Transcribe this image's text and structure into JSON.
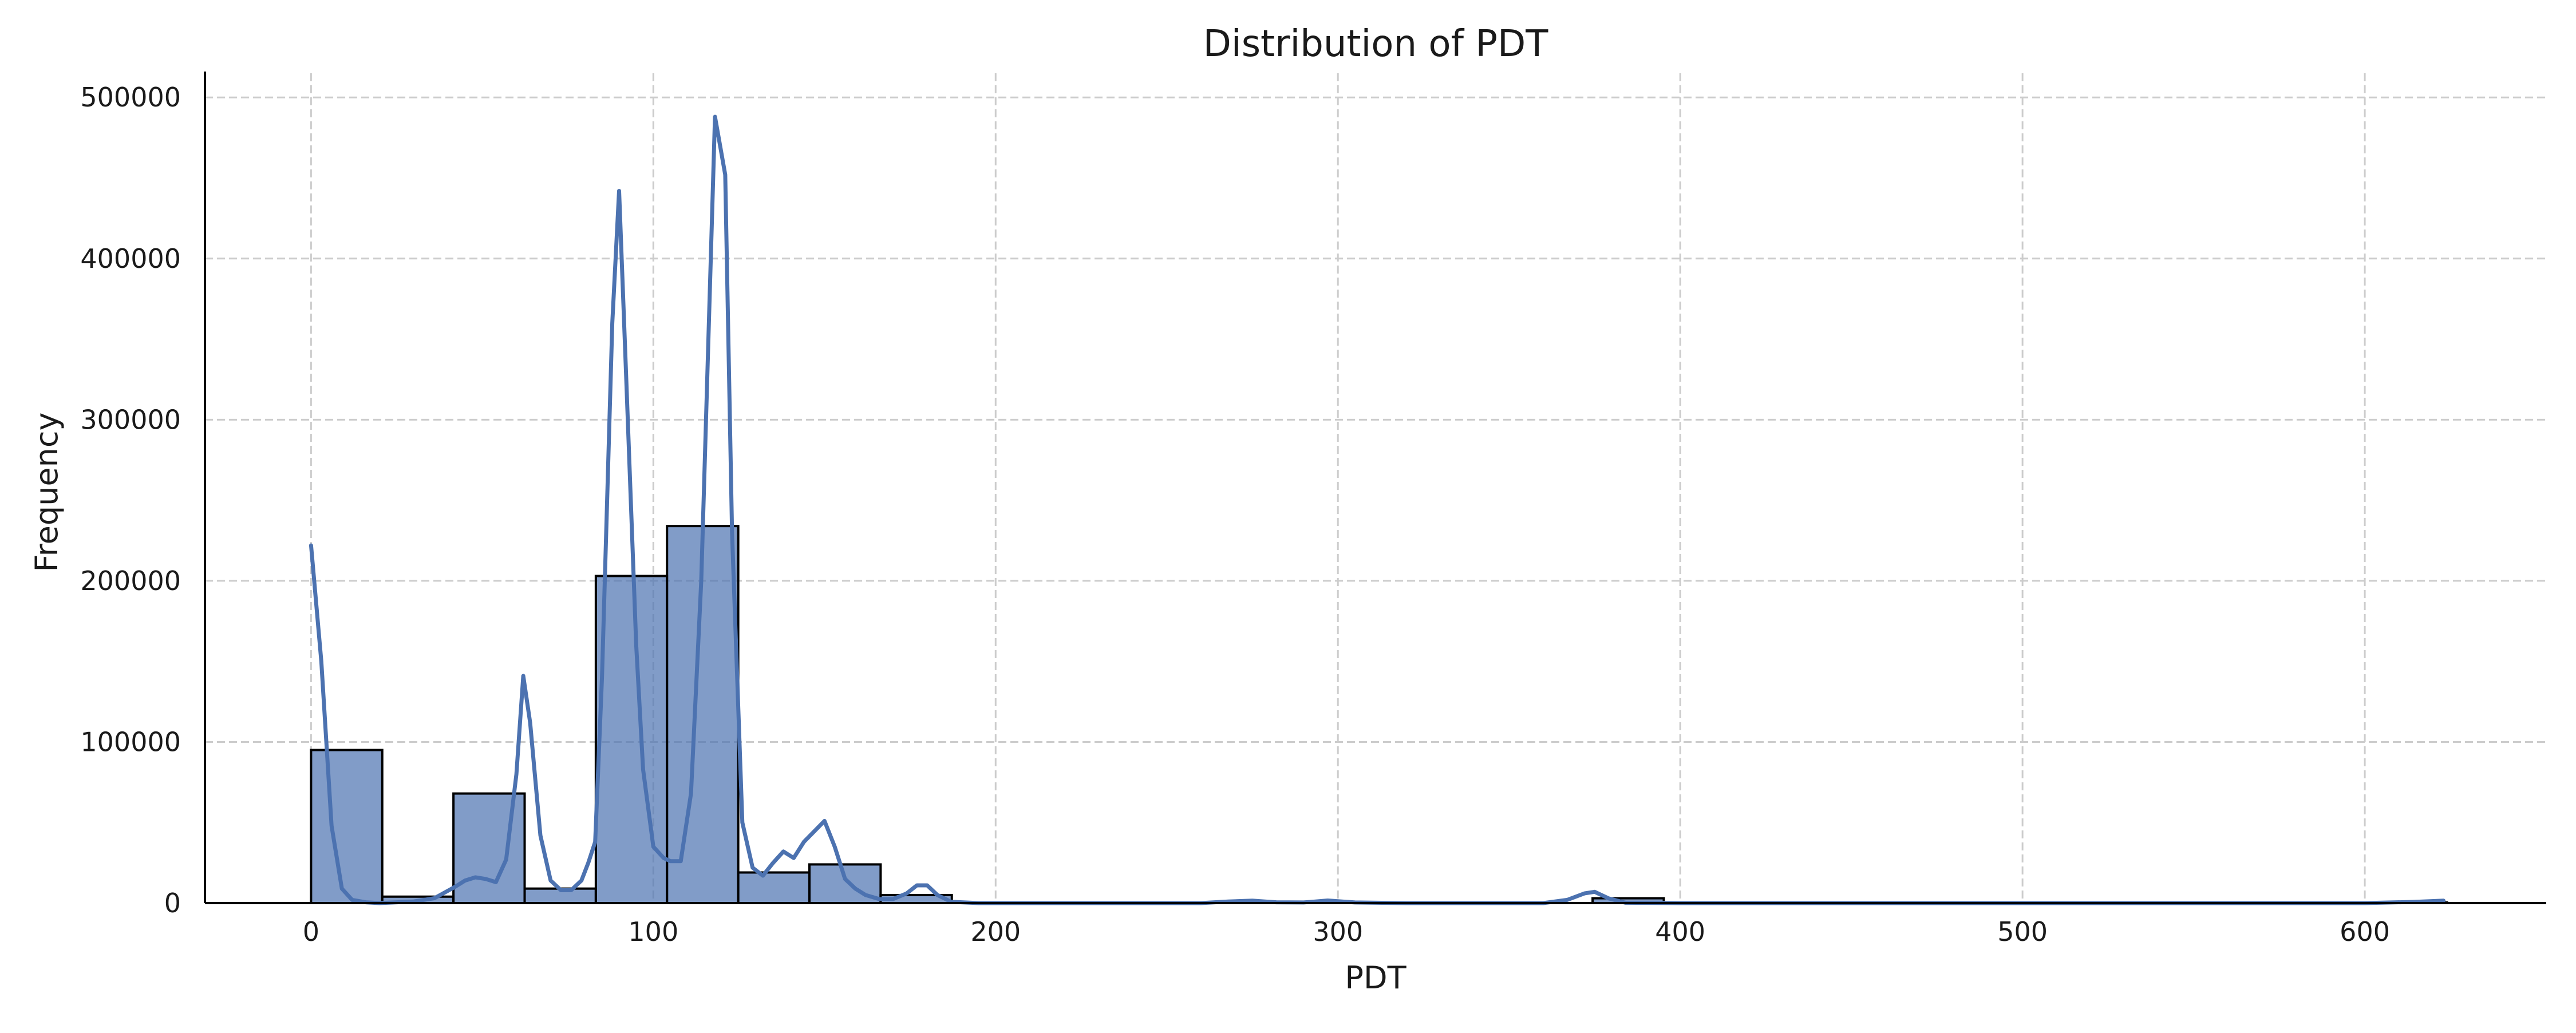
{
  "chart_data": {
    "type": "bar",
    "title": "Distribution of PDT",
    "xlabel": "PDT",
    "ylabel": "Frequency",
    "xlim": [
      -31,
      653
    ],
    "ylim": [
      0,
      515000
    ],
    "xticks": [
      0,
      100,
      200,
      300,
      400,
      500,
      600
    ],
    "yticks": [
      0,
      100000,
      200000,
      300000,
      400000,
      500000
    ],
    "grid": true,
    "legend": "none",
    "bar_color": "#4c72b0",
    "bar_opacity": 0.7,
    "bin_width": 20.8,
    "bins": [
      {
        "x0": 0.0,
        "x1": 20.8,
        "value": 95000
      },
      {
        "x0": 20.8,
        "x1": 41.6,
        "value": 4000
      },
      {
        "x0": 41.6,
        "x1": 62.4,
        "value": 68000
      },
      {
        "x0": 62.4,
        "x1": 83.2,
        "value": 9000
      },
      {
        "x0": 83.2,
        "x1": 104.0,
        "value": 203000
      },
      {
        "x0": 104.0,
        "x1": 124.8,
        "value": 234000
      },
      {
        "x0": 124.8,
        "x1": 145.6,
        "value": 19000
      },
      {
        "x0": 145.6,
        "x1": 166.4,
        "value": 24000
      },
      {
        "x0": 166.4,
        "x1": 187.2,
        "value": 5000
      },
      {
        "x0": 187.2,
        "x1": 208.0,
        "value": 0
      },
      {
        "x0": 208.0,
        "x1": 228.8,
        "value": 0
      },
      {
        "x0": 228.8,
        "x1": 249.6,
        "value": 0
      },
      {
        "x0": 249.6,
        "x1": 270.4,
        "value": 0
      },
      {
        "x0": 270.4,
        "x1": 291.2,
        "value": 0
      },
      {
        "x0": 291.2,
        "x1": 312.0,
        "value": 0
      },
      {
        "x0": 312.0,
        "x1": 332.8,
        "value": 0
      },
      {
        "x0": 332.8,
        "x1": 353.6,
        "value": 0
      },
      {
        "x0": 353.6,
        "x1": 374.4,
        "value": 0
      },
      {
        "x0": 374.4,
        "x1": 395.2,
        "value": 3000
      },
      {
        "x0": 395.2,
        "x1": 416.0,
        "value": 0
      },
      {
        "x0": 416.0,
        "x1": 436.8,
        "value": 0
      },
      {
        "x0": 436.8,
        "x1": 457.6,
        "value": 0
      },
      {
        "x0": 457.6,
        "x1": 478.4,
        "value": 0
      },
      {
        "x0": 478.4,
        "x1": 499.2,
        "value": 0
      },
      {
        "x0": 499.2,
        "x1": 520.0,
        "value": 0
      },
      {
        "x0": 520.0,
        "x1": 540.8,
        "value": 0
      },
      {
        "x0": 540.8,
        "x1": 561.6,
        "value": 0
      },
      {
        "x0": 561.6,
        "x1": 582.4,
        "value": 0
      },
      {
        "x0": 582.4,
        "x1": 603.2,
        "value": 0
      },
      {
        "x0": 603.2,
        "x1": 624.0,
        "value": 400
      }
    ],
    "kde": {
      "color": "#4c72b0",
      "points": [
        [
          0,
          222000
        ],
        [
          3,
          150000
        ],
        [
          6,
          48000
        ],
        [
          9,
          9000
        ],
        [
          12,
          2000
        ],
        [
          16,
          500
        ],
        [
          20,
          0
        ],
        [
          30,
          1000
        ],
        [
          36,
          3000
        ],
        [
          42,
          10000
        ],
        [
          45,
          14000
        ],
        [
          48,
          16000
        ],
        [
          51,
          15000
        ],
        [
          54,
          13000
        ],
        [
          57,
          27000
        ],
        [
          60,
          80000
        ],
        [
          62,
          141000
        ],
        [
          64,
          112000
        ],
        [
          67,
          42000
        ],
        [
          70,
          14000
        ],
        [
          73,
          8000
        ],
        [
          76,
          8000
        ],
        [
          79,
          14000
        ],
        [
          81,
          25000
        ],
        [
          83,
          38000
        ],
        [
          85,
          140000
        ],
        [
          88,
          360000
        ],
        [
          90,
          442000
        ],
        [
          92,
          330000
        ],
        [
          95,
          160000
        ],
        [
          97,
          83000
        ],
        [
          100,
          35000
        ],
        [
          103,
          28000
        ],
        [
          105,
          26000
        ],
        [
          108,
          26000
        ],
        [
          111,
          68000
        ],
        [
          114,
          200000
        ],
        [
          118,
          488000
        ],
        [
          121,
          452000
        ],
        [
          123,
          230000
        ],
        [
          126,
          50000
        ],
        [
          129,
          22000
        ],
        [
          132,
          17000
        ],
        [
          135,
          25000
        ],
        [
          138,
          32000
        ],
        [
          141,
          28000
        ],
        [
          144,
          38000
        ],
        [
          150,
          51000
        ],
        [
          153,
          35000
        ],
        [
          156,
          15000
        ],
        [
          159,
          9000
        ],
        [
          162,
          5000
        ],
        [
          166,
          2500
        ],
        [
          170,
          2500
        ],
        [
          174,
          6000
        ],
        [
          177,
          11000
        ],
        [
          180,
          11000
        ],
        [
          183,
          5000
        ],
        [
          187,
          800
        ],
        [
          195,
          0
        ],
        [
          260,
          0
        ],
        [
          268,
          1000
        ],
        [
          275,
          1500
        ],
        [
          282,
          500
        ],
        [
          290,
          400
        ],
        [
          297,
          1600
        ],
        [
          305,
          400
        ],
        [
          320,
          0
        ],
        [
          360,
          0
        ],
        [
          367,
          2000
        ],
        [
          372,
          6000
        ],
        [
          375,
          7000
        ],
        [
          379,
          3000
        ],
        [
          384,
          200
        ],
        [
          400,
          0
        ],
        [
          600,
          0
        ],
        [
          614,
          700
        ],
        [
          623,
          1500
        ]
      ]
    }
  }
}
